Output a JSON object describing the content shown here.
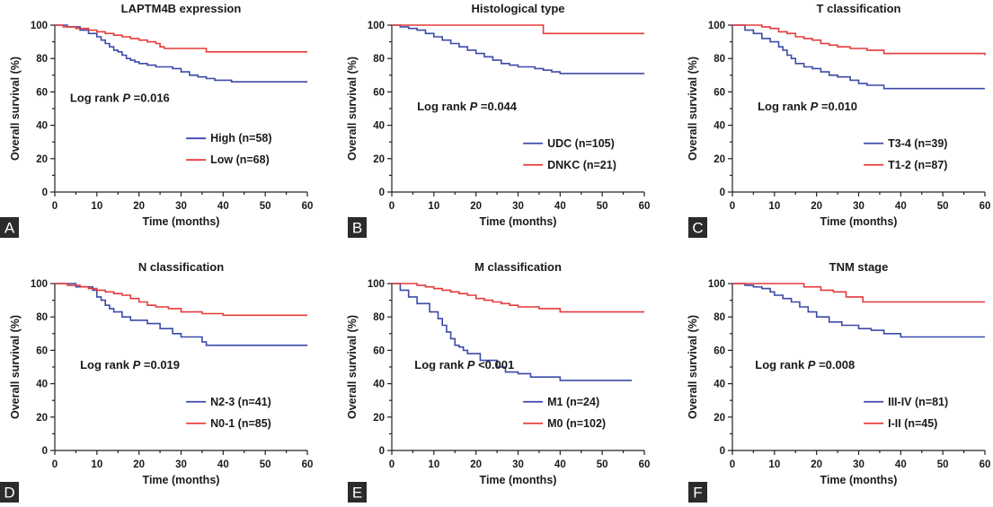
{
  "chart_data": [
    {
      "type": "line",
      "panel_label": "A",
      "title": "LAPTM4B expression",
      "xlabel": "Time (months)",
      "ylabel": "Overall survival (%)",
      "xlim": [
        0,
        60
      ],
      "ylim": [
        0,
        100
      ],
      "xticks": [
        "0",
        "10",
        "20",
        "30",
        "40",
        "50",
        "60"
      ],
      "yticks": [
        "0",
        "20",
        "40",
        "60",
        "80",
        "100"
      ],
      "annotation": {
        "prefix": "Log rank ",
        "p": "P",
        "suffix": " =0.016"
      },
      "series": [
        {
          "name": "High (n=58)",
          "color": "#3b4aa8",
          "x": [
            0,
            3,
            6,
            8,
            10,
            11,
            12,
            13,
            14,
            15,
            16,
            17,
            18,
            19,
            20,
            22,
            24,
            28,
            30,
            32,
            34,
            36,
            38,
            40,
            42,
            60
          ],
          "y": [
            100,
            99,
            97,
            95,
            93,
            91,
            89,
            87,
            85,
            84,
            82,
            80,
            79,
            78,
            77,
            76,
            75,
            74,
            72,
            70,
            69,
            68,
            67,
            67,
            66,
            66
          ]
        },
        {
          "name": "Low (n=68)",
          "color": "#e53a3a",
          "x": [
            0,
            2,
            5,
            8,
            10,
            12,
            14,
            16,
            18,
            20,
            22,
            24,
            25,
            26,
            28,
            30,
            34,
            36,
            60
          ],
          "y": [
            100,
            99,
            98,
            97,
            96,
            95,
            94,
            93,
            92,
            91,
            90,
            89,
            87,
            86,
            86,
            86,
            86,
            84,
            84
          ]
        }
      ]
    },
    {
      "type": "line",
      "panel_label": "B",
      "title": "Histological type",
      "xlabel": "Time (months)",
      "ylabel": "Overall survival (%)",
      "xlim": [
        0,
        60
      ],
      "ylim": [
        0,
        100
      ],
      "xticks": [
        "0",
        "10",
        "20",
        "30",
        "40",
        "50",
        "60"
      ],
      "yticks": [
        "0",
        "20",
        "40",
        "60",
        "80",
        "100"
      ],
      "annotation": {
        "prefix": "Log rank ",
        "p": "P",
        "suffix": " =0.044"
      },
      "series": [
        {
          "name": "UDC (n=105)",
          "color": "#3b4aa8",
          "x": [
            0,
            2,
            4,
            6,
            8,
            10,
            12,
            14,
            16,
            18,
            20,
            22,
            24,
            26,
            28,
            30,
            34,
            36,
            38,
            40,
            60
          ],
          "y": [
            100,
            99,
            98,
            97,
            95,
            93,
            91,
            89,
            87,
            85,
            83,
            81,
            79,
            77,
            76,
            75,
            74,
            73,
            72,
            71,
            71
          ]
        },
        {
          "name": "DNKC (n=21)",
          "color": "#e53a3a",
          "x": [
            0,
            36,
            60
          ],
          "y": [
            100,
            95,
            95
          ]
        }
      ]
    },
    {
      "type": "line",
      "panel_label": "C",
      "title": "T classification",
      "xlabel": "Time (months)",
      "ylabel": "Overall survival (%)",
      "xlim": [
        0,
        60
      ],
      "ylim": [
        0,
        100
      ],
      "xticks": [
        "0",
        "10",
        "20",
        "30",
        "40",
        "50",
        "60"
      ],
      "yticks": [
        "0",
        "20",
        "40",
        "60",
        "80",
        "100"
      ],
      "annotation": {
        "prefix": "Log rank ",
        "p": "P",
        "suffix": " =0.010"
      },
      "series": [
        {
          "name": "T3-4 (n=39)",
          "color": "#3b4aa8",
          "x": [
            0,
            3,
            5,
            7,
            9,
            11,
            12,
            13,
            14,
            15,
            17,
            19,
            21,
            23,
            25,
            28,
            30,
            32,
            36,
            60
          ],
          "y": [
            100,
            97,
            95,
            92,
            90,
            87,
            85,
            82,
            80,
            77,
            75,
            74,
            72,
            70,
            69,
            67,
            65,
            64,
            62,
            62
          ]
        },
        {
          "name": "T1-2 (n=87)",
          "color": "#e53a3a",
          "x": [
            0,
            7,
            9,
            11,
            13,
            15,
            17,
            19,
            21,
            23,
            25,
            28,
            32,
            36,
            60
          ],
          "y": [
            100,
            99,
            98,
            96,
            95,
            93,
            92,
            91,
            89,
            88,
            87,
            86,
            85,
            83,
            82
          ]
        }
      ]
    },
    {
      "type": "line",
      "panel_label": "D",
      "title": "N classification",
      "xlabel": "Time (months)",
      "ylabel": "Overall survival (%)",
      "xlim": [
        0,
        60
      ],
      "ylim": [
        0,
        100
      ],
      "xticks": [
        "0",
        "10",
        "20",
        "30",
        "40",
        "50",
        "60"
      ],
      "yticks": [
        "0",
        "20",
        "40",
        "60",
        "80",
        "100"
      ],
      "annotation": {
        "prefix": "Log rank ",
        "p": "P",
        "suffix": " =0.019"
      },
      "series": [
        {
          "name": "N2-3 (n=41)",
          "color": "#3b4aa8",
          "x": [
            0,
            5,
            9,
            10,
            11,
            12,
            13,
            14,
            16,
            18,
            22,
            25,
            28,
            30,
            35,
            36,
            60
          ],
          "y": [
            100,
            98,
            96,
            92,
            90,
            87,
            85,
            83,
            80,
            78,
            76,
            73,
            70,
            68,
            65,
            63,
            63
          ]
        },
        {
          "name": "N0-1 (n=85)",
          "color": "#e53a3a",
          "x": [
            0,
            3,
            6,
            8,
            10,
            12,
            14,
            16,
            18,
            20,
            22,
            24,
            27,
            30,
            35,
            40,
            60
          ],
          "y": [
            100,
            99,
            98,
            97,
            96,
            95,
            94,
            93,
            91,
            89,
            87,
            86,
            85,
            83,
            82,
            81,
            81
          ]
        }
      ]
    },
    {
      "type": "line",
      "panel_label": "E",
      "title": "M classification",
      "xlabel": "Time (months)",
      "ylabel": "Overall survival (%)",
      "xlim": [
        0,
        60
      ],
      "ylim": [
        0,
        100
      ],
      "xticks": [
        "0",
        "10",
        "20",
        "30",
        "40",
        "50",
        "60"
      ],
      "yticks": [
        "0",
        "20",
        "40",
        "60",
        "80",
        "100"
      ],
      "annotation": {
        "prefix": "Log rank ",
        "p": "P",
        "suffix": " <0.001"
      },
      "series": [
        {
          "name": "M1 (n=24)",
          "color": "#3b4aa8",
          "x": [
            0,
            2,
            4,
            6,
            9,
            11,
            12,
            13,
            14,
            15,
            16,
            17,
            18,
            21,
            25,
            27,
            30,
            33,
            40,
            57
          ],
          "y": [
            100,
            96,
            92,
            88,
            83,
            79,
            75,
            71,
            67,
            63,
            62,
            60,
            58,
            54,
            50,
            47,
            46,
            44,
            42,
            42
          ]
        },
        {
          "name": "M0 (n=102)",
          "color": "#e53a3a",
          "x": [
            0,
            6,
            8,
            10,
            12,
            14,
            16,
            18,
            20,
            22,
            24,
            26,
            28,
            30,
            35,
            40,
            60
          ],
          "y": [
            100,
            99,
            98,
            97,
            96,
            95,
            94,
            93,
            91,
            90,
            89,
            88,
            87,
            86,
            85,
            83,
            83
          ]
        }
      ]
    },
    {
      "type": "line",
      "panel_label": "F",
      "title": "TNM stage",
      "xlabel": "Time (months)",
      "ylabel": "Overall survival (%)",
      "xlim": [
        0,
        60
      ],
      "ylim": [
        0,
        100
      ],
      "xticks": [
        "0",
        "10",
        "20",
        "30",
        "40",
        "50",
        "60"
      ],
      "yticks": [
        "0",
        "20",
        "40",
        "60",
        "80",
        "100"
      ],
      "annotation": {
        "prefix": "Log rank ",
        "p": "P",
        "suffix": " =0.008"
      },
      "series": [
        {
          "name": "III-IV (n=81)",
          "color": "#3b4aa8",
          "x": [
            0,
            3,
            5,
            7,
            9,
            10,
            12,
            14,
            16,
            18,
            20,
            23,
            26,
            30,
            33,
            36,
            40,
            60
          ],
          "y": [
            100,
            99,
            98,
            97,
            95,
            93,
            91,
            89,
            86,
            83,
            80,
            77,
            75,
            73,
            72,
            70,
            68,
            68
          ]
        },
        {
          "name": "I-II (n=45)",
          "color": "#e53a3a",
          "x": [
            0,
            17,
            21,
            24,
            27,
            31,
            60
          ],
          "y": [
            100,
            98,
            96,
            95,
            92,
            89,
            89
          ]
        }
      ]
    }
  ]
}
